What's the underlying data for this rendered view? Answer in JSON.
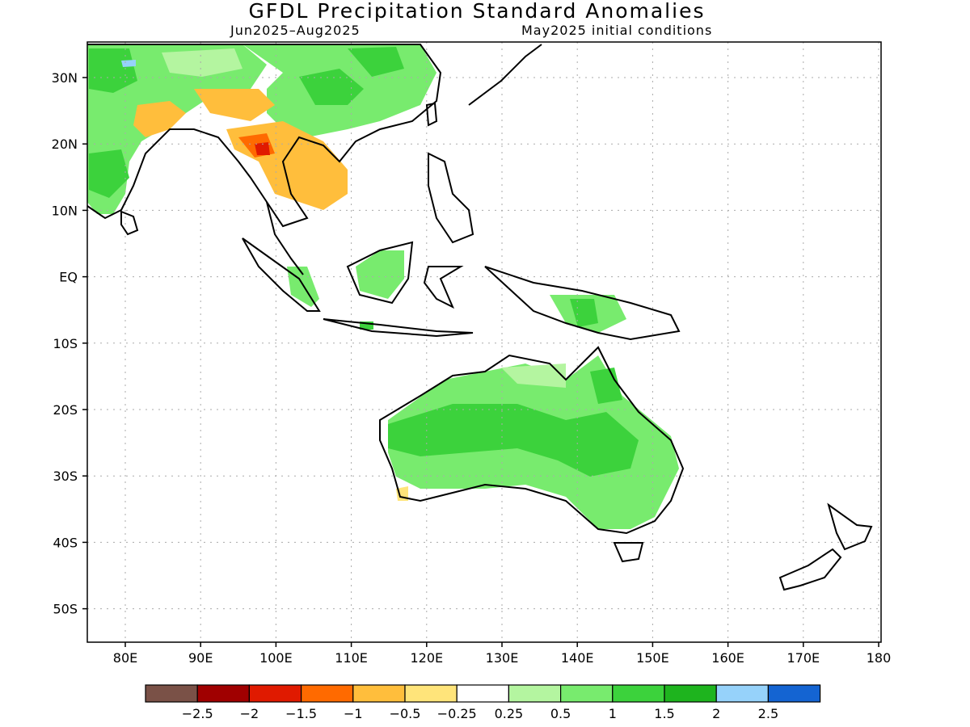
{
  "title": "GFDL Precipitation Standard Anomalies",
  "subtitle_left": "Jun2025–Aug2025",
  "subtitle_right": "May2025 initial conditions",
  "lat_labels": [
    "30N",
    "20N",
    "10N",
    "EQ",
    "10S",
    "20S",
    "30S",
    "40S",
    "50S"
  ],
  "lon_labels": [
    "80E",
    "90E",
    "100E",
    "110E",
    "120E",
    "130E",
    "140E",
    "150E",
    "160E",
    "170E",
    "180"
  ],
  "legend": {
    "colors": [
      "#7a5147",
      "#a00000",
      "#e01a00",
      "#ff6a00",
      "#ffbe3c",
      "#ffe47a",
      "#ffffff",
      "#b4f5a0",
      "#78eb6e",
      "#3cd23c",
      "#1eb41e",
      "#96d2fa",
      "#1464d2"
    ],
    "labels": [
      "−2.5",
      "−2",
      "−1.5",
      "−1",
      "−0.5",
      "−0.25",
      "0.25",
      "0.5",
      "1",
      "1.5",
      "2",
      "2.5"
    ]
  }
}
